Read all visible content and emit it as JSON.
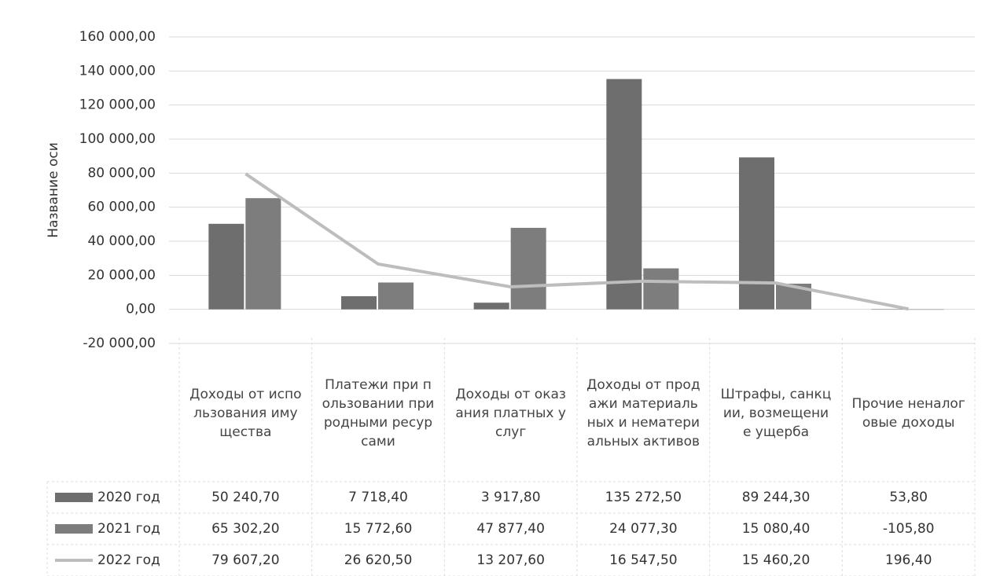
{
  "chart_data": {
    "type": "bar",
    "y_label": "Название оси",
    "categories": [
      "Доходы от использования имущества",
      "Платежи при пользовании природными ресурсами",
      "Доходы от оказания платных услуг",
      "Доходы от продажи материальных и нематериальных активов",
      "Штрафы, санкции, возмещение ущерба",
      "Прочие неналоговые доходы"
    ],
    "series": [
      {
        "name": "2020 год",
        "type": "bar",
        "color": "#6e6e6e",
        "values": [
          50240.7,
          7718.4,
          3917.8,
          135272.5,
          89244.3,
          53.8
        ],
        "value_labels": [
          "50 240,70",
          "7 718,40",
          "3 917,80",
          "135 272,50",
          "89 244,30",
          "53,80"
        ]
      },
      {
        "name": "2021 год",
        "type": "bar",
        "color": "#7d7d7d",
        "values": [
          65302.2,
          15772.6,
          47877.4,
          24077.3,
          15080.4,
          -105.8
        ],
        "value_labels": [
          "65 302,20",
          "15 772,60",
          "47 877,40",
          "24 077,30",
          "15 080,40",
          "-105,80"
        ]
      },
      {
        "name": "2022 год",
        "type": "line",
        "color": "#bdbdbd",
        "values": [
          79607.2,
          26620.5,
          13207.6,
          16547.5,
          15460.2,
          196.4
        ],
        "value_labels": [
          "79 607,20",
          "26 620,50",
          "13 207,60",
          "16 547,50",
          "15 460,20",
          "196,40"
        ]
      }
    ],
    "ylim": [
      -20000,
      160000
    ],
    "yticks": [
      {
        "value": -20000,
        "label": "-20 000,00"
      },
      {
        "value": 0,
        "label": "0,00"
      },
      {
        "value": 20000,
        "label": "20 000,00"
      },
      {
        "value": 40000,
        "label": "40 000,00"
      },
      {
        "value": 60000,
        "label": "60 000,00"
      },
      {
        "value": 80000,
        "label": "80 000,00"
      },
      {
        "value": 100000,
        "label": "100 000,00"
      },
      {
        "value": 120000,
        "label": "120 000,00"
      },
      {
        "value": 140000,
        "label": "140 000,00"
      },
      {
        "value": 160000,
        "label": "160 000,00"
      }
    ],
    "grid": true
  }
}
